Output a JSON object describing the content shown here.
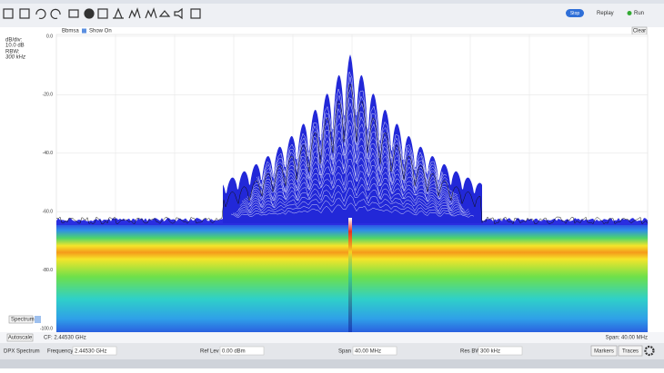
{
  "toolbar": {
    "status": "Stop",
    "replay": "Replay",
    "run": "Run"
  },
  "plot_header": {
    "trace": "Bbmsa",
    "show": "Show On",
    "clear": "Clear"
  },
  "left_panel": {
    "db_div_label": "dB/div:",
    "db_div_value": "10.0 dB",
    "rbw_label": "RBW:",
    "rbw_value": "300 kHz",
    "view": "Spectrum"
  },
  "y_axis": {
    "ticks": [
      "0.0",
      "-20.0",
      "-40.0",
      "-60.0",
      "-80.0",
      "-100.0"
    ]
  },
  "plot_footer": {
    "autoscale": "Autoscale",
    "cf": "CF: 2.44530 GHz",
    "span": "Span: 40.00 MHz"
  },
  "status_bar": {
    "mode": "DPX Spectrum",
    "frequency_label": "Frequency",
    "frequency_value": "2.44530 GHz",
    "ref_lev_label": "Ref Lev",
    "ref_lev_value": "0.00 dBm",
    "span_label": "Span",
    "span_value": "40.00 MHz",
    "res_bw_label": "Res BW",
    "res_bw_value": "300 kHz",
    "markers": "Markers",
    "traces": "Traces"
  }
}
